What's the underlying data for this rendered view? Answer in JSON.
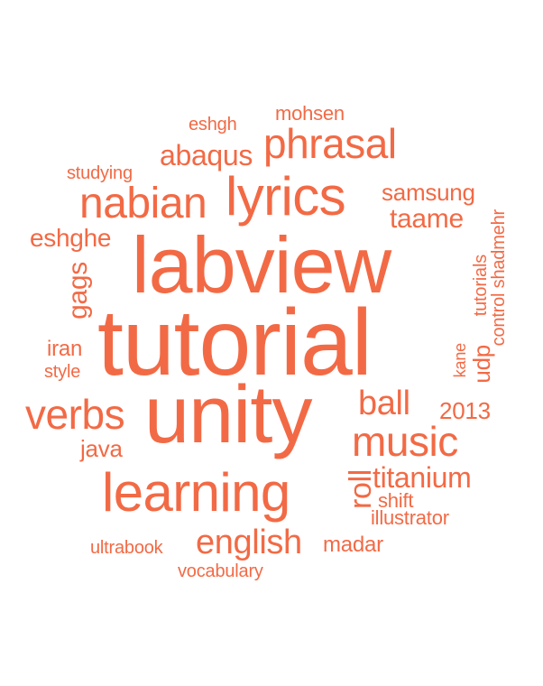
{
  "accent_color": "#f26a45",
  "words": [
    {
      "text": "tutorial"
    },
    {
      "text": "labview"
    },
    {
      "text": "unity"
    },
    {
      "text": "learning"
    },
    {
      "text": "lyrics"
    },
    {
      "text": "nabian"
    },
    {
      "text": "phrasal"
    },
    {
      "text": "music"
    },
    {
      "text": "verbs"
    },
    {
      "text": "english"
    },
    {
      "text": "ball"
    },
    {
      "text": "titanium"
    },
    {
      "text": "abaqus"
    },
    {
      "text": "samsung"
    },
    {
      "text": "taame"
    },
    {
      "text": "eshghe"
    },
    {
      "text": "gags"
    },
    {
      "text": "roll"
    },
    {
      "text": "java"
    },
    {
      "text": "madar"
    },
    {
      "text": "2013"
    },
    {
      "text": "udp"
    },
    {
      "text": "control shadmehr"
    },
    {
      "text": "tutorials"
    },
    {
      "text": "kane"
    },
    {
      "text": "iran"
    },
    {
      "text": "style"
    },
    {
      "text": "studying"
    },
    {
      "text": "eshgh"
    },
    {
      "text": "mohsen"
    },
    {
      "text": "shift"
    },
    {
      "text": "illustrator"
    },
    {
      "text": "ultrabook"
    },
    {
      "text": "vocabulary"
    }
  ]
}
